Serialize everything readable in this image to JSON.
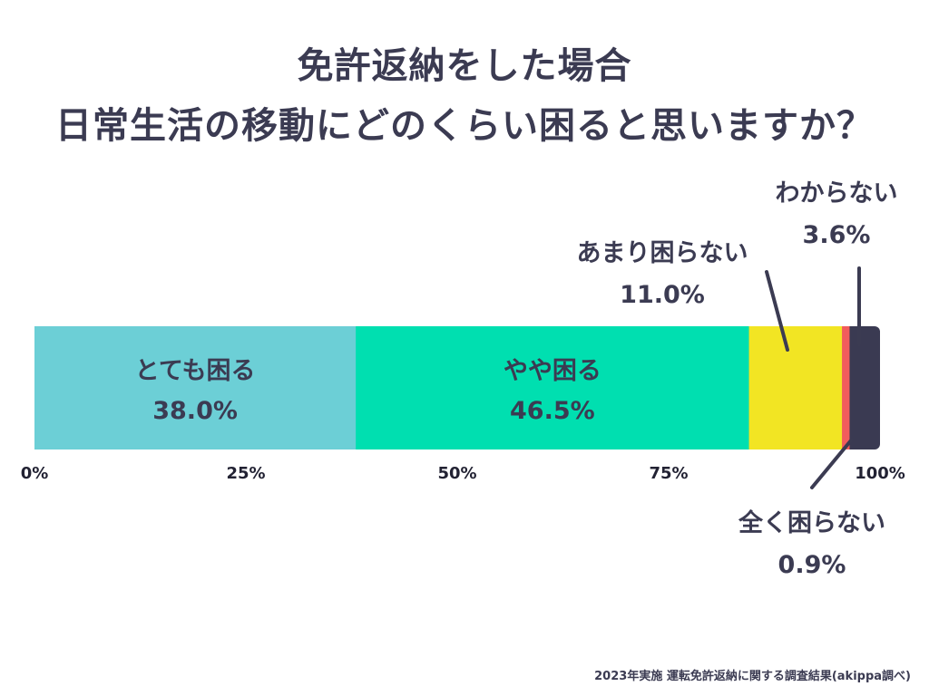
{
  "title_line1": "免許返納をした場合",
  "title_line2": "日常生活の移動にどのくらい困ると思いますか？",
  "footnote": "2023年実施 運転免許返納に関する調査結果(akippa調べ)",
  "chart_data": {
    "type": "bar",
    "orientation": "horizontal-stacked-100",
    "title": "",
    "xlim": [
      0,
      100
    ],
    "ticks": [
      "0%",
      "25%",
      "50%",
      "75%",
      "100%"
    ],
    "tick_values": [
      0,
      25,
      50,
      75,
      100
    ],
    "series": [
      {
        "name": "とても困る",
        "value": 38.0,
        "label": "38.0%",
        "color": "#6ccfd6"
      },
      {
        "name": "やや困る",
        "value": 46.5,
        "label": "46.5%",
        "color": "#00dfb0"
      },
      {
        "name": "あまり困らない",
        "value": 11.0,
        "label": "11.0%",
        "color": "#f2e523"
      },
      {
        "name": "全く困らない",
        "value": 0.9,
        "label": "0.9%",
        "color": "#f25c5c"
      },
      {
        "name": "わからない",
        "value": 3.6,
        "label": "3.6%",
        "color": "#3a3a52"
      }
    ]
  }
}
